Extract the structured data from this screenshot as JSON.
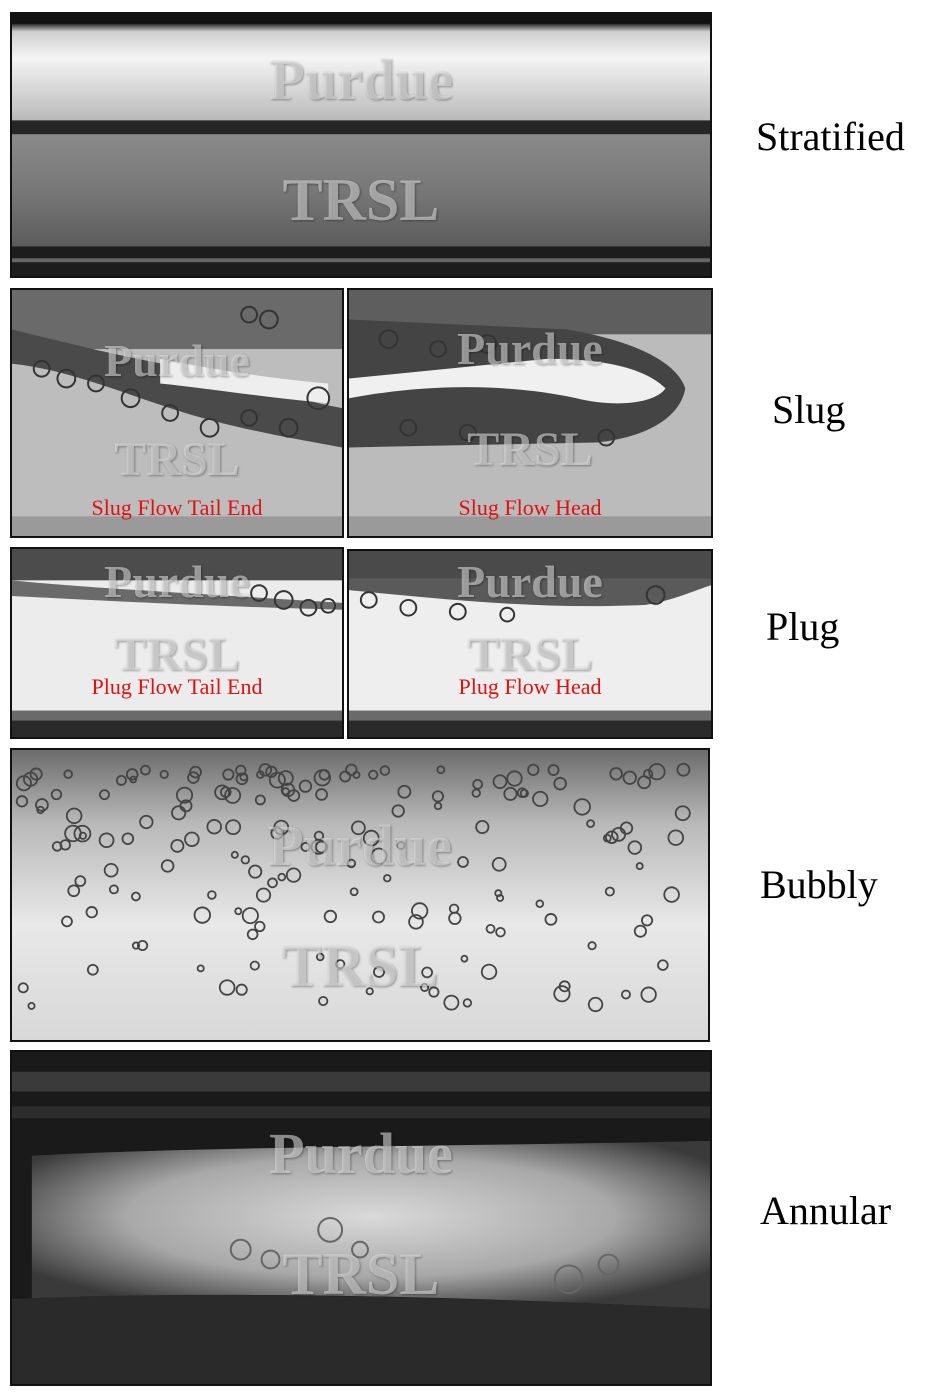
{
  "rows": {
    "stratified": {
      "label": "Stratified",
      "watermark_top": "Purdue",
      "watermark_bottom": "TRSL"
    },
    "slug": {
      "label": "Slug",
      "left_caption": "Slug Flow Tail End",
      "right_caption": "Slug Flow Head",
      "watermark_top": "Purdue",
      "watermark_bottom": "TRSL"
    },
    "plug": {
      "label": "Plug",
      "left_caption": "Plug Flow Tail End",
      "right_caption": "Plug Flow Head",
      "watermark_top": "Purdue",
      "watermark_bottom": "TRSL"
    },
    "bubbly": {
      "label": "Bubbly",
      "watermark_top": "Purdue",
      "watermark_bottom": "TRSL"
    },
    "annular": {
      "label": "Annular",
      "watermark_top": "Purdue",
      "watermark_bottom": "TRSL"
    }
  },
  "colors": {
    "caption": "#e01010",
    "frame": "#111111"
  }
}
